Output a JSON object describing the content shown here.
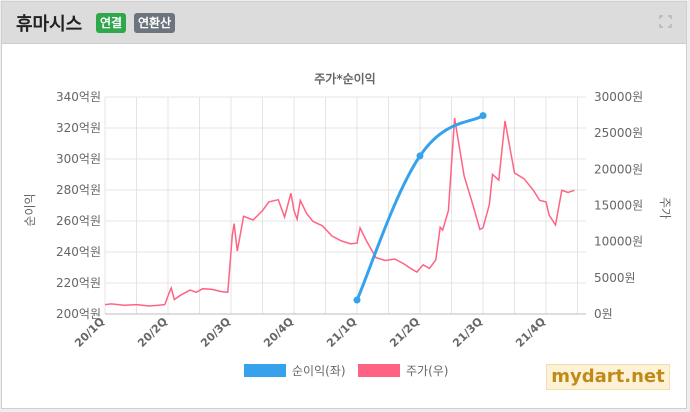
{
  "header": {
    "company": "휴마시스",
    "badge_consolidated": "연결",
    "badge_annualized": "연환산"
  },
  "watermark": "mydart.net",
  "colors": {
    "net_income": "#36a2eb",
    "price": "#ff6384",
    "badge_consolidated": "#2ea84a",
    "badge_annualized": "#6c757d"
  },
  "chart_data": {
    "type": "line",
    "title": "주가*순이익",
    "y_left_label": "순이익",
    "y_right_label": "주가",
    "y_left_range": [
      200,
      340
    ],
    "y_right_range": [
      0,
      30000
    ],
    "y_left_ticks": [
      "340억원",
      "320억원",
      "300억원",
      "280억원",
      "260억원",
      "240억원",
      "220억원",
      "200억원"
    ],
    "y_right_ticks": [
      "30000원",
      "25000원",
      "20000원",
      "15000원",
      "10000원",
      "5000원",
      "0원"
    ],
    "x_ticks": [
      "20/1Q",
      "20/2Q",
      "20/3Q",
      "20/4Q",
      "21/1Q",
      "21/2Q",
      "21/3Q",
      "21/4Q"
    ],
    "grid": true,
    "legend_position": "bottom",
    "series": [
      {
        "name": "순이익(좌)",
        "axis": "left",
        "points": [
          [
            "21/1Q",
            209
          ],
          [
            "21/2Q",
            302
          ],
          [
            "21/3Q",
            328
          ]
        ]
      },
      {
        "name": "주가(우)",
        "axis": "right",
        "quarter_positions": [
          0,
          0.1,
          0.3,
          0.5,
          0.7,
          0.85,
          0.95,
          1.0,
          1.05,
          1.1,
          1.2,
          1.35,
          1.45,
          1.55,
          1.7,
          1.85,
          1.95,
          2.02,
          2.05,
          2.1,
          2.2,
          2.35,
          2.5,
          2.6,
          2.75,
          2.85,
          2.95,
          3.0,
          3.05,
          3.1,
          3.2,
          3.3,
          3.45,
          3.6,
          3.75,
          3.9,
          4.0,
          4.05,
          4.15,
          4.3,
          4.45,
          4.6,
          4.75,
          4.85,
          4.95,
          5.05,
          5.15,
          5.25,
          5.32,
          5.36,
          5.45,
          5.55,
          5.7,
          5.85,
          5.95,
          6.0,
          6.1,
          6.15,
          6.25,
          6.35,
          6.5,
          6.65,
          6.8,
          6.9,
          7.0,
          7.05,
          7.15,
          7.25,
          7.35,
          7.45
        ],
        "values": [
          1300,
          1400,
          1200,
          1300,
          1100,
          1200,
          1300,
          2500,
          3600,
          2000,
          2600,
          3300,
          3000,
          3500,
          3400,
          3100,
          3000,
          10900,
          12500,
          8700,
          13500,
          13000,
          14300,
          15500,
          15800,
          13400,
          16700,
          14300,
          13100,
          15700,
          13900,
          12800,
          12200,
          10800,
          10100,
          9700,
          9800,
          11900,
          10100,
          7800,
          7400,
          7600,
          6900,
          6300,
          5800,
          6800,
          6300,
          7500,
          12000,
          11600,
          14300,
          27100,
          19100,
          14800,
          11700,
          11900,
          15100,
          19300,
          18500,
          26700,
          19500,
          18700,
          17100,
          15700,
          15500,
          13700,
          12300,
          17100,
          16800,
          17100
        ]
      }
    ]
  }
}
